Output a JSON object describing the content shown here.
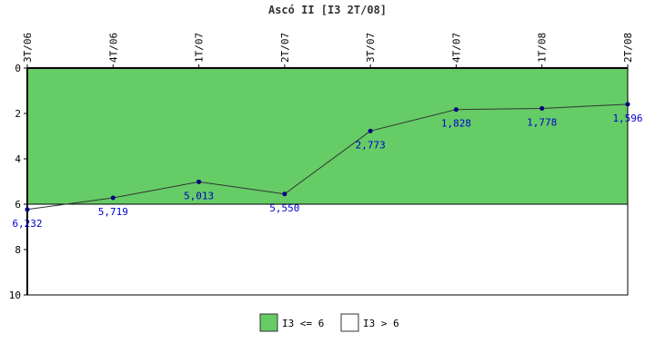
{
  "chart_data": {
    "type": "line",
    "title": "Ascó II [I3 2T/08]",
    "categories": [
      "3T/06",
      "4T/06",
      "1T/07",
      "2T/07",
      "3T/07",
      "4T/07",
      "1T/08",
      "2T/08"
    ],
    "series": [
      {
        "values": [
          6.232,
          5.719,
          5.013,
          5.55,
          2.773,
          1.828,
          1.778,
          1.596
        ],
        "labels": [
          "6,232",
          "5,719",
          "5,013",
          "5,550",
          "2,773",
          "1,828",
          "1,778",
          "1,596"
        ],
        "color": "#000080"
      }
    ],
    "y_ticks": [
      "0",
      "2",
      "4",
      "6",
      "8",
      "10"
    ],
    "ylim": [
      0,
      10
    ],
    "y_inverted": true,
    "threshold": 6,
    "bands": [
      {
        "label": "I3 <= 6",
        "color": "#66cc66",
        "from": 0,
        "to": 6
      },
      {
        "label": "I3 > 6",
        "color": "#ffffff",
        "from": 6,
        "to": 10
      }
    ],
    "legend_position": "bottom-center",
    "grid": false
  },
  "colors": {
    "line": "#333333",
    "point": "#000080",
    "data_label": "#0000cc",
    "axis": "#000000"
  }
}
